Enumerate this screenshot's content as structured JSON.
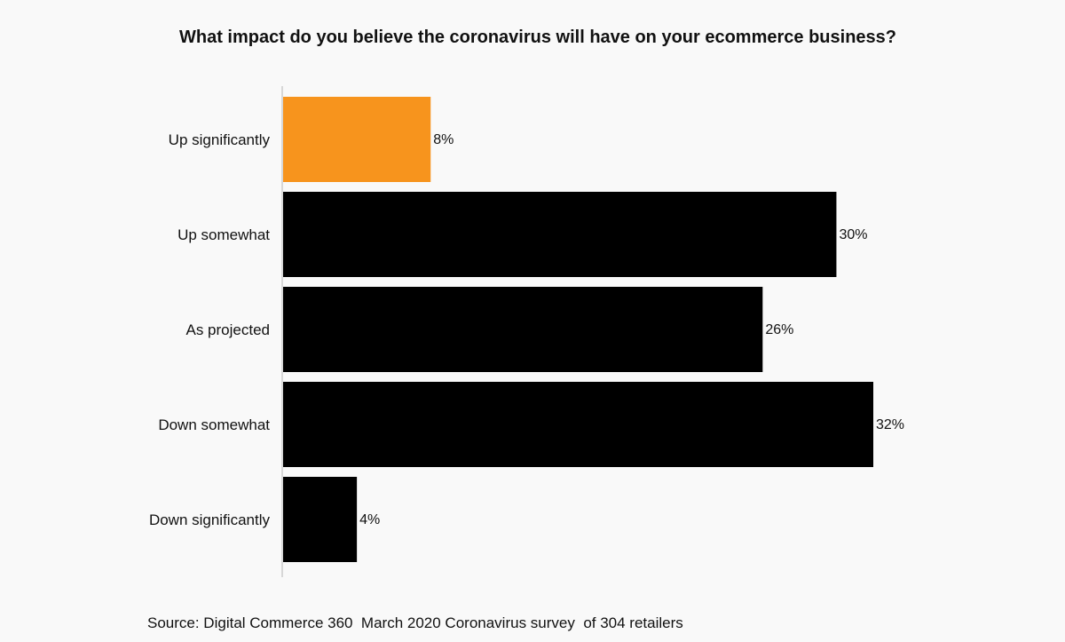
{
  "chart_data": {
    "type": "bar",
    "orientation": "horizontal",
    "title": "What impact do you believe the coronavirus will have on your ecommerce business?",
    "xlabel": "",
    "ylabel": "",
    "categories": [
      "Up significantly",
      "Up somewhat",
      "As projected",
      "Down somewhat",
      "Down significantly"
    ],
    "values": [
      8,
      30,
      26,
      32,
      4
    ],
    "data_labels": [
      "8%",
      "30%",
      "26%",
      "32%",
      "4%"
    ],
    "unit": "%",
    "xlim": [
      0,
      32
    ],
    "grid": false,
    "legend": "none",
    "highlight_index": 0,
    "colors": {
      "highlight": "#f7941d",
      "default": "#000000",
      "axis": "#cccccc"
    }
  },
  "source": "Source: Digital Commerce 360  March 2020 Coronavirus survey  of 304 retailers"
}
